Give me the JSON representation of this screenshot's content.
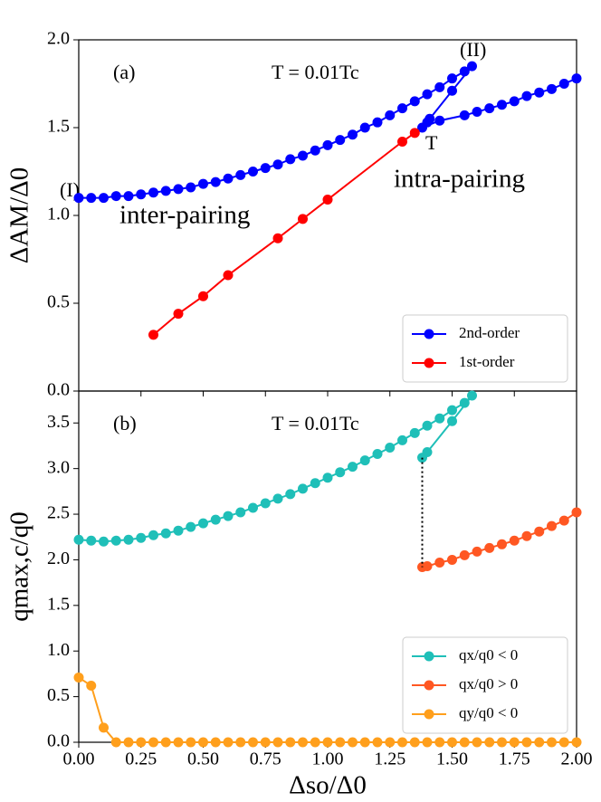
{
  "chart_data": [
    {
      "type": "line",
      "panel": "(a)",
      "annotations": [
        "T = 0.01Tc",
        "(I)",
        "(II)",
        "T",
        "inter-pairing",
        "intra-pairing"
      ],
      "ylabel": "ΔAM/Δ0",
      "legend": "lower right",
      "xlim": [
        0,
        2
      ],
      "xticks": [
        0,
        0.25,
        0.5,
        0.75,
        1,
        1.25,
        1.5,
        1.75,
        2
      ],
      "ylim": [
        0,
        2
      ],
      "yticks": [
        {
          "value": 0,
          "label": "0.0"
        },
        0.5,
        {
          "value": 1,
          "label": "1.0"
        },
        1.5,
        {
          "value": 2,
          "label": "2.0"
        }
      ],
      "series": [
        {
          "name": "2nd-order",
          "color": "#0000ff",
          "x": [
            0,
            0.05,
            0.1,
            0.15,
            0.2,
            0.25,
            0.3,
            0.35,
            0.4,
            0.45,
            0.5,
            0.55,
            0.6,
            0.65,
            0.7,
            0.75,
            0.8,
            0.85,
            0.9,
            0.95,
            1.0,
            1.05,
            1.1,
            1.15,
            1.2,
            1.25,
            1.3,
            1.35,
            1.4,
            1.45,
            1.5,
            1.55,
            1.58,
            1.5,
            1.41,
            1.4,
            1.38,
            1.45,
            1.55,
            1.6,
            1.65,
            1.7,
            1.75,
            1.8,
            1.85,
            1.9,
            1.95,
            2.0
          ],
          "values": [
            1.1,
            1.1,
            1.1,
            1.11,
            1.11,
            1.12,
            1.13,
            1.14,
            1.15,
            1.16,
            1.18,
            1.19,
            1.21,
            1.23,
            1.25,
            1.27,
            1.29,
            1.32,
            1.34,
            1.37,
            1.4,
            1.43,
            1.46,
            1.5,
            1.53,
            1.57,
            1.61,
            1.65,
            1.69,
            1.73,
            1.78,
            1.82,
            1.85,
            1.71,
            1.55,
            1.53,
            1.5,
            1.54,
            1.57,
            1.59,
            1.61,
            1.63,
            1.65,
            1.68,
            1.7,
            1.72,
            1.75,
            1.78
          ]
        },
        {
          "name": "1st-order",
          "color": "#ff0000",
          "x": [
            0.3,
            0.4,
            0.5,
            0.6,
            0.8,
            0.9,
            1.0,
            1.3,
            1.35
          ],
          "values": [
            0.32,
            0.44,
            0.54,
            0.66,
            0.87,
            0.98,
            1.09,
            1.42,
            1.47
          ]
        }
      ]
    },
    {
      "type": "line",
      "panel": "(b)",
      "annotations": [
        "T = 0.01Tc"
      ],
      "ylabel": "qmax,c/q0",
      "xlabel": "Δso/Δ0",
      "legend": "lower right",
      "xlim": [
        0,
        2
      ],
      "xticks": [
        {
          "value": 0,
          "label": "0.00"
        },
        0.25,
        {
          "value": 0.5,
          "label": "0.50"
        },
        0.75,
        {
          "value": 1,
          "label": "1.00"
        },
        1.25,
        {
          "value": 1.5,
          "label": "1.50"
        },
        1.75,
        {
          "value": 2,
          "label": "2.00"
        }
      ],
      "ylim": [
        0,
        3.85
      ],
      "yticks": [
        {
          "value": 0,
          "label": "0.0"
        },
        0.5,
        {
          "value": 1,
          "label": "1.0"
        },
        1.5,
        {
          "value": 2,
          "label": "2.0"
        },
        2.5,
        {
          "value": 3,
          "label": "3.0"
        },
        3.5
      ],
      "series": [
        {
          "name": "qx/q0 < 0",
          "color": "#1fbfb8",
          "x": [
            0,
            0.05,
            0.1,
            0.15,
            0.2,
            0.25,
            0.3,
            0.35,
            0.4,
            0.45,
            0.5,
            0.55,
            0.6,
            0.65,
            0.7,
            0.75,
            0.8,
            0.85,
            0.9,
            0.95,
            1.0,
            1.05,
            1.1,
            1.15,
            1.2,
            1.25,
            1.3,
            1.35,
            1.4,
            1.45,
            1.5,
            1.55,
            1.58,
            1.5,
            1.4,
            1.38
          ],
          "values": [
            2.22,
            2.21,
            2.2,
            2.21,
            2.22,
            2.24,
            2.27,
            2.29,
            2.32,
            2.36,
            2.4,
            2.44,
            2.48,
            2.52,
            2.57,
            2.62,
            2.67,
            2.72,
            2.78,
            2.84,
            2.9,
            2.96,
            3.02,
            3.09,
            3.16,
            3.23,
            3.31,
            3.39,
            3.47,
            3.55,
            3.64,
            3.72,
            3.8,
            3.52,
            3.18,
            3.12
          ]
        },
        {
          "name": "qx/q0 > 0",
          "color": "#ff5722",
          "x": [
            1.38,
            1.4,
            1.45,
            1.5,
            1.55,
            1.6,
            1.65,
            1.7,
            1.75,
            1.8,
            1.85,
            1.9,
            1.95,
            2.0
          ],
          "values": [
            1.92,
            1.93,
            1.97,
            2.0,
            2.05,
            2.09,
            2.13,
            2.17,
            2.21,
            2.26,
            2.31,
            2.37,
            2.43,
            2.52
          ]
        },
        {
          "name": "qy/q0 < 0",
          "color": "#ff9f1c",
          "x": [
            0,
            0.05,
            0.1,
            0.15,
            0.2,
            0.25,
            0.3,
            0.35,
            0.4,
            0.45,
            0.5,
            0.55,
            0.6,
            0.65,
            0.7,
            0.75,
            0.8,
            0.85,
            0.9,
            0.95,
            1.0,
            1.05,
            1.1,
            1.15,
            1.2,
            1.25,
            1.3,
            1.35,
            1.4,
            1.45,
            1.5,
            1.55,
            1.6,
            1.65,
            1.7,
            1.75,
            1.8,
            1.85,
            1.9,
            1.95,
            2.0
          ],
          "values": [
            0.71,
            0.62,
            0.16,
            0,
            0,
            0,
            0,
            0,
            0,
            0,
            0,
            0,
            0,
            0,
            0,
            0,
            0,
            0,
            0,
            0,
            0,
            0,
            0,
            0,
            0,
            0,
            0,
            0,
            0,
            0,
            0,
            0,
            0,
            0,
            0,
            0,
            0,
            0,
            0,
            0,
            0
          ]
        }
      ]
    }
  ]
}
